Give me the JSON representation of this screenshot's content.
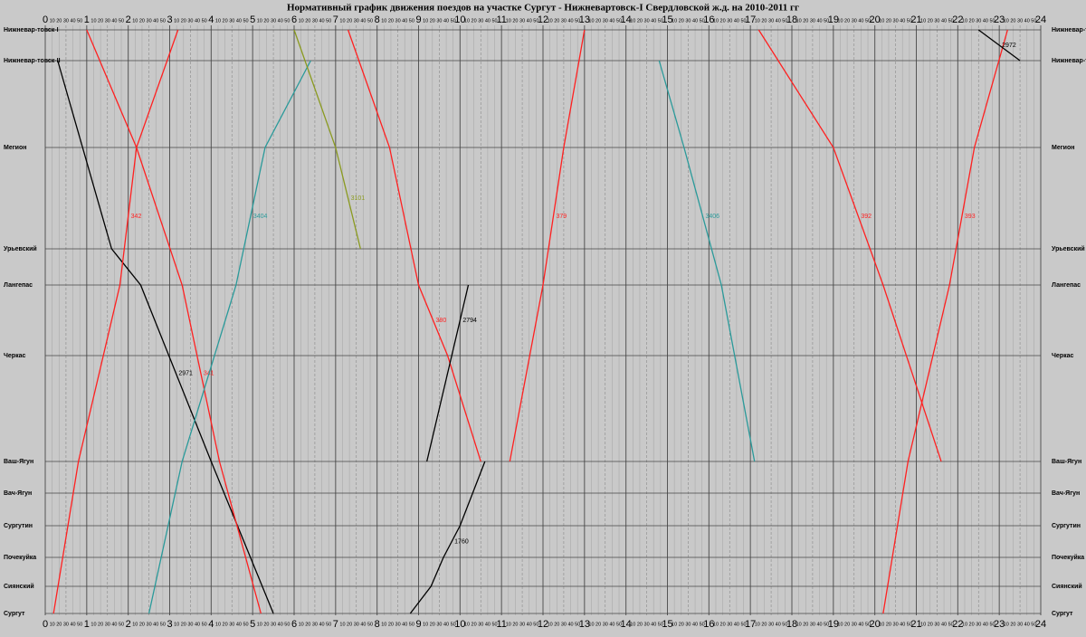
{
  "chart_data": {
    "type": "line",
    "title": "Нормативный график движения поездов на участке Сургут - Нижневартовск-I  Свердловской ж.д. на 2010-2011 гг",
    "categories": [
      "Нижневар-товск-I",
      "Нижневар-товск-II",
      "Мегион",
      "Урьевский",
      "Лангепас",
      "Черкас",
      "Ваш-Ягун",
      "Вач-Ягун",
      "Сургутин",
      "Почекуйка",
      "Сиянский",
      "Сургут"
    ],
    "xlim": [
      0,
      24
    ],
    "xticks": [
      0,
      1,
      2,
      3,
      4,
      5,
      6,
      7,
      8,
      9,
      10,
      11,
      12,
      13,
      14,
      15,
      16,
      17,
      18,
      19,
      20,
      21,
      22,
      23,
      24
    ],
    "minute_labels": [
      10,
      20,
      30,
      40,
      50
    ],
    "grid": true,
    "series": [
      {
        "name": "2971",
        "color": "#000000",
        "x": [
          0.3,
          1.6,
          2.3,
          4.0,
          5.5
        ],
        "values": [
          "Нижневар-товск-II",
          "Урьевский",
          "Лангепас",
          "Ваш-Ягун",
          "Сургут"
        ]
      },
      {
        "name": "341",
        "color": "#ff2020",
        "x": [
          1.0,
          2.2,
          3.3,
          4.2,
          5.2
        ],
        "values": [
          "Нижневар-товск-I",
          "Мегион",
          "Лангепас",
          "Ваш-Ягун",
          "Сургут"
        ]
      },
      {
        "name": "342",
        "color": "#ff2020",
        "x": [
          0.2,
          0.8,
          1.8,
          2.2,
          3.2
        ],
        "values": [
          "Сургут",
          "Ваш-Ягун",
          "Лангепас",
          "Мегион",
          "Нижневар-товск-I"
        ]
      },
      {
        "name": "3404",
        "color": "#2a9a9a",
        "x": [
          2.5,
          3.3,
          4.6,
          5.3,
          6.4
        ],
        "values": [
          "Сургут",
          "Ваш-Ягун",
          "Лангепас",
          "Мегион",
          "Нижневар-товск-II"
        ]
      },
      {
        "name": "3101",
        "color": "#8a9a20",
        "x": [
          6.0,
          7.0,
          7.6
        ],
        "values": [
          "Нижневар-товск-I",
          "Мегион",
          "Урьевский"
        ]
      },
      {
        "name": "380",
        "color": "#ff2020",
        "x": [
          7.3,
          8.3,
          9.0,
          9.7,
          10.5
        ],
        "values": [
          "Нижневар-товск-I",
          "Мегион",
          "Лангепас",
          "Черкас",
          "Ваш-Ягун"
        ]
      },
      {
        "name": "2794",
        "color": "#000000",
        "x": [
          9.2,
          9.8,
          10.2
        ],
        "values": [
          "Ваш-Ягун",
          "Черкас",
          "Лангепас"
        ]
      },
      {
        "name": "379",
        "color": "#ff2020",
        "x": [
          11.2,
          12.0,
          12.5,
          13.0
        ],
        "values": [
          "Ваш-Ягун",
          "Лангепас",
          "Мегион",
          "Нижневар-товск-I"
        ]
      },
      {
        "name": "3406",
        "color": "#2a9a9a",
        "x": [
          14.8,
          15.4,
          16.3,
          17.1
        ],
        "values": [
          "Нижневар-товск-II",
          "Мегион",
          "Лангепас",
          "Ваш-Ягун"
        ]
      },
      {
        "name": "392",
        "color": "#ff2020",
        "x": [
          17.2,
          19.0,
          20.2,
          21.6
        ],
        "values": [
          "Нижневар-товск-I",
          "Мегион",
          "Лангепас",
          "Ваш-Ягун"
        ]
      },
      {
        "name": "393",
        "color": "#ff2020",
        "x": [
          20.2,
          20.8,
          21.8,
          22.4,
          23.2
        ],
        "values": [
          "Сургут",
          "Ваш-Ягун",
          "Лангепас",
          "Мегион",
          "Нижневар-товск-I"
        ]
      },
      {
        "name": "1760",
        "color": "#000000",
        "x": [
          8.8,
          9.3,
          9.6,
          10.0,
          10.6
        ],
        "values": [
          "Сургут",
          "Сиянский",
          "Почекуйка",
          "Сургутин",
          "Ваш-Ягун"
        ]
      },
      {
        "name": "2972",
        "color": "#000000",
        "x": [
          22.5,
          23.5
        ],
        "values": [
          "Нижневар-товск-I",
          "Нижневар-товск-II"
        ]
      }
    ]
  }
}
